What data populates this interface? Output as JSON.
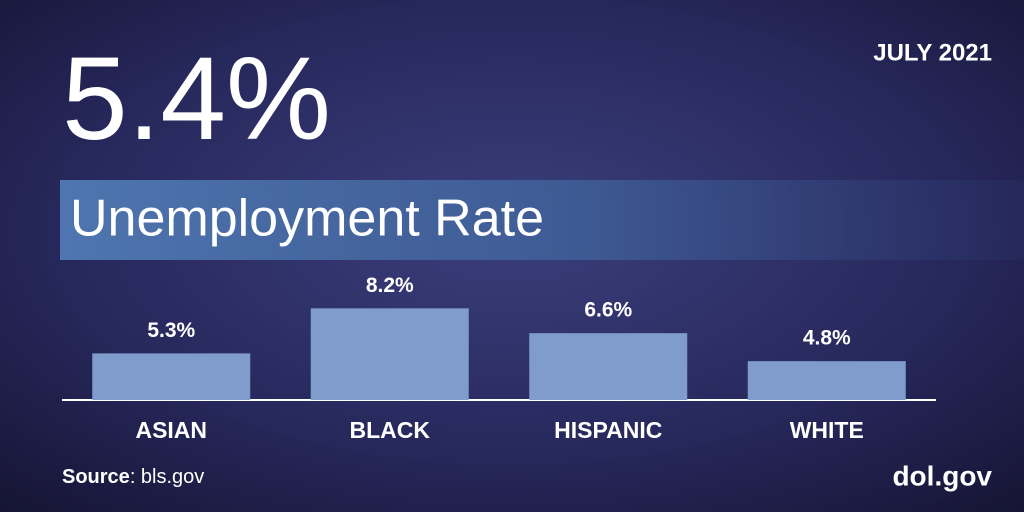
{
  "headline": "5.4%",
  "source_label": "Source",
  "source_text": ": bls.gov",
  "footer": "dol.gov",
  "chart_data": {
    "type": "bar",
    "title": "Unemployment Rate",
    "subtitle": "JULY 2021",
    "categories": [
      "ASIAN",
      "BLACK",
      "HISPANIC",
      "WHITE"
    ],
    "values": [
      5.3,
      8.2,
      6.6,
      4.8
    ],
    "value_labels": [
      "5.3%",
      "8.2%",
      "6.6%",
      "4.8%"
    ],
    "color": "#7f9ccc",
    "ylim": [
      2.3,
      8.8
    ]
  }
}
